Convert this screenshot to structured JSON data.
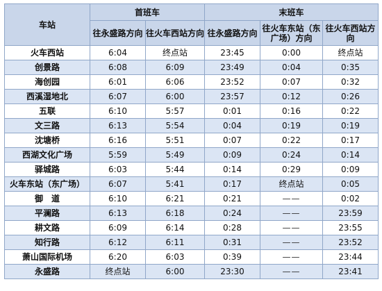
{
  "header": {
    "station_col": "车站",
    "first_train": "首班车",
    "last_train": "末班车",
    "first_dirs": [
      "往永盛路方向",
      "往火车西站方向"
    ],
    "last_dirs": [
      "往永盛路方向",
      "往火车东站（东广场）方向",
      "往火车西站方向"
    ]
  },
  "rows": [
    {
      "station": "火车西站",
      "f1": "6:04",
      "f2": "终点站",
      "l1": "23:45",
      "l2": "0:00",
      "l3": "终点站"
    },
    {
      "station": "创景路",
      "f1": "6:08",
      "f2": "6:09",
      "l1": "23:49",
      "l2": "0:04",
      "l3": "0:35"
    },
    {
      "station": "海创园",
      "f1": "6:01",
      "f2": "6:06",
      "l1": "23:52",
      "l2": "0:07",
      "l3": "0:32"
    },
    {
      "station": "西溪湿地北",
      "f1": "6:07",
      "f2": "6:00",
      "l1": "23:57",
      "l2": "0:12",
      "l3": "0:26"
    },
    {
      "station": "五联",
      "f1": "6:10",
      "f2": "5:57",
      "l1": "0:01",
      "l2": "0:16",
      "l3": "0:22"
    },
    {
      "station": "文三路",
      "f1": "6:13",
      "f2": "5:54",
      "l1": "0:04",
      "l2": "0:19",
      "l3": "0:19"
    },
    {
      "station": "沈塘桥",
      "f1": "6:16",
      "f2": "5:51",
      "l1": "0:07",
      "l2": "0:22",
      "l3": "0:17"
    },
    {
      "station": "西湖文化广场",
      "f1": "5:59",
      "f2": "5:49",
      "l1": "0:09",
      "l2": "0:24",
      "l3": "0:14"
    },
    {
      "station": "驿城路",
      "f1": "6:03",
      "f2": "5:44",
      "l1": "0:14",
      "l2": "0:29",
      "l3": "0:09"
    },
    {
      "station": "火车东站（东广场）",
      "f1": "6:07",
      "f2": "5:41",
      "l1": "0:17",
      "l2": "终点站",
      "l3": "0:05"
    },
    {
      "station": "御　道",
      "f1": "6:10",
      "f2": "6:21",
      "l1": "0:21",
      "l2": "——",
      "l3": "0:02"
    },
    {
      "station": "平澜路",
      "f1": "6:13",
      "f2": "6:18",
      "l1": "0:24",
      "l2": "——",
      "l3": "23:59"
    },
    {
      "station": "耕文路",
      "f1": "6:09",
      "f2": "6:14",
      "l1": "0:28",
      "l2": "——",
      "l3": "23:55"
    },
    {
      "station": "知行路",
      "f1": "6:12",
      "f2": "6:11",
      "l1": "0:31",
      "l2": "——",
      "l3": "23:52"
    },
    {
      "station": "萧山国际机场",
      "f1": "6:20",
      "f2": "6:03",
      "l1": "0:39",
      "l2": "——",
      "l3": "23:44"
    },
    {
      "station": "永盛路",
      "f1": "终点站",
      "f2": "6:00",
      "l1": "23:30",
      "l2": "——",
      "l3": "23:41"
    }
  ]
}
